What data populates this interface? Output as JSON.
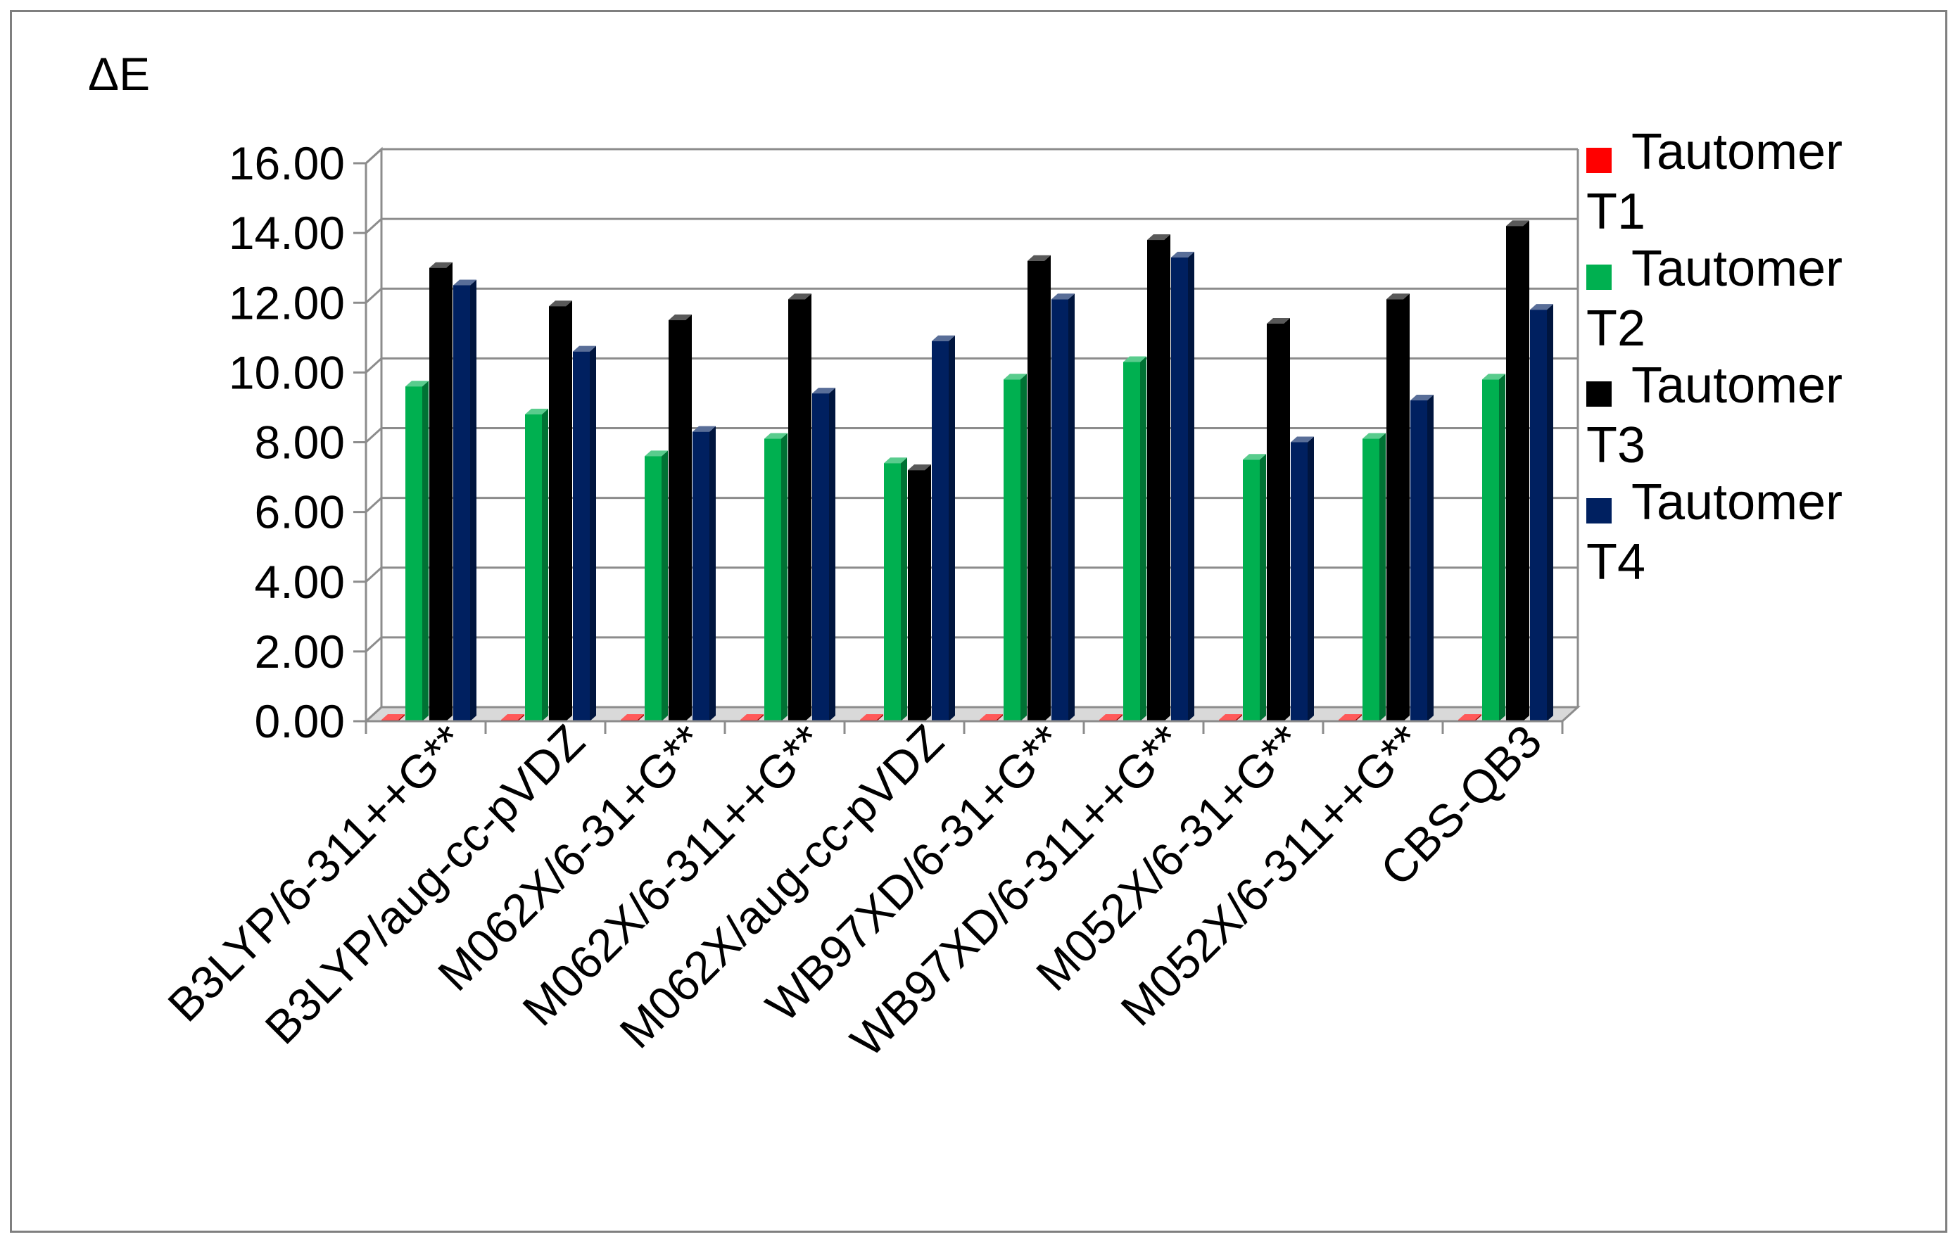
{
  "chart_data": {
    "type": "bar",
    "ylabel": "ΔE",
    "ylim": [
      0,
      16
    ],
    "ytick_step": 2,
    "ytick_labels": [
      "0.00",
      "2.00",
      "4.00",
      "6.00",
      "8.00",
      "10.00",
      "12.00",
      "14.00",
      "16.00"
    ],
    "grid": true,
    "legend_position": "right",
    "categories": [
      "B3LYP/6-311++G**",
      "B3LYP/aug-cc-pVDZ",
      "M062X/6-31+G**",
      "M062X/6-311++G**",
      "M062X/aug-cc-pVDZ",
      "WB97XD/6-31+G**",
      "WB97XD/6-311++G**",
      "M052X/6-31+G**",
      "M052X/6-311++G**",
      "CBS-QB3"
    ],
    "series": [
      {
        "name": "Tautomer T1",
        "color": "#ff0000",
        "values": [
          0,
          0,
          0,
          0,
          0,
          0,
          0,
          0,
          0,
          0
        ]
      },
      {
        "name": "Tautomer T2",
        "color": "#00b050",
        "values": [
          9.6,
          8.8,
          7.6,
          8.1,
          7.4,
          9.8,
          10.3,
          7.5,
          8.1,
          9.8
        ]
      },
      {
        "name": "Tautomer T3",
        "color": "#000000",
        "values": [
          13.0,
          11.9,
          11.5,
          12.1,
          7.2,
          13.2,
          13.8,
          11.4,
          12.1,
          14.2
        ]
      },
      {
        "name": "Tautomer T4",
        "color": "#002060",
        "values": [
          12.5,
          10.6,
          8.3,
          9.4,
          10.9,
          12.1,
          13.3,
          8.0,
          9.2,
          11.8
        ]
      }
    ]
  }
}
